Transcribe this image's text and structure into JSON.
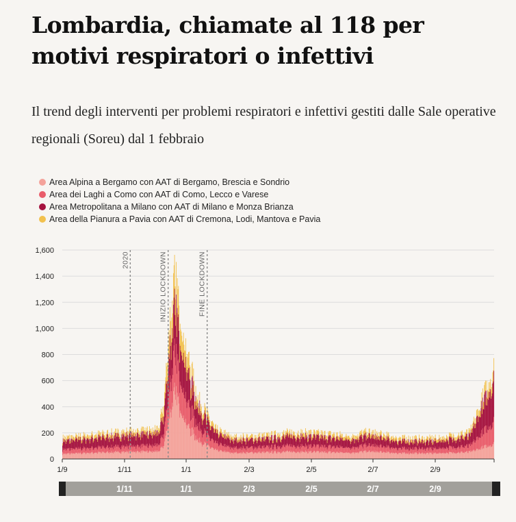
{
  "header": {
    "title": "Lombardia, chiamate al 118 per motivi respiratori o infettivi",
    "subtitle": "Il trend degli interventi per problemi respiratori e infettivi gestiti dalle Sale operative regionali (Soreu) dal 1 febbraio"
  },
  "legend": {
    "items": [
      {
        "label": "Area Alpina a Bergamo con AAT di Bergamo, Brescia e Sondrio",
        "color": "#f4a29a"
      },
      {
        "label": "Area dei Laghi a Como con AAT di Como, Lecco e Varese",
        "color": "#e95c6a"
      },
      {
        "label": "Area Metropolitana a Milano con AAT di Milano e Monza Brianza",
        "color": "#a5123e"
      },
      {
        "label": "Area della Pianura a Pavia con AAT di Cremona, Lodi, Mantova e Pavia",
        "color": "#f2c14e"
      }
    ]
  },
  "chart_data": {
    "type": "bar",
    "stacked": true,
    "xlabel": "",
    "ylabel": "",
    "ylim": [
      0,
      1600
    ],
    "yticks": [
      "0",
      "200",
      "400",
      "600",
      "800",
      "1,000",
      "1,200",
      "1,400",
      "1,600"
    ],
    "xticks": [
      "1/9",
      "1/11",
      "1/1",
      "2/3",
      "2/5",
      "2/7",
      "2/9"
    ],
    "grid": true,
    "x_start": "2019-09-01",
    "x_end": "2021-10-15",
    "annotations": [
      {
        "label": "2020",
        "date": "2020-01-01"
      },
      {
        "label": "INIZIO LOCKDOWN",
        "date": "2020-03-09"
      },
      {
        "label": "FINE LOCKDOWN",
        "date": "2020-05-18"
      }
    ],
    "series": [
      {
        "name": "Area Alpina a Bergamo con AAT di Bergamo, Brescia e Sondrio",
        "color": "#f4a29a",
        "keyframes": [
          [
            "2019-09-01",
            40
          ],
          [
            "2019-11-01",
            50
          ],
          [
            "2020-01-01",
            58
          ],
          [
            "2020-02-20",
            58
          ],
          [
            "2020-03-01",
            110
          ],
          [
            "2020-03-12",
            360
          ],
          [
            "2020-03-20",
            520
          ],
          [
            "2020-03-28",
            440
          ],
          [
            "2020-04-10",
            280
          ],
          [
            "2020-05-01",
            150
          ],
          [
            "2020-06-01",
            70
          ],
          [
            "2020-07-01",
            48
          ],
          [
            "2020-09-01",
            52
          ],
          [
            "2020-10-15",
            58
          ],
          [
            "2020-12-01",
            55
          ],
          [
            "2021-02-01",
            50
          ],
          [
            "2021-03-01",
            60
          ],
          [
            "2021-05-01",
            45
          ],
          [
            "2021-07-01",
            45
          ],
          [
            "2021-09-01",
            55
          ],
          [
            "2021-10-15",
            120
          ]
        ]
      },
      {
        "name": "Area dei Laghi a Como con AAT di Como, Lecco e Varese",
        "color": "#e95c6a",
        "keyframes": [
          [
            "2019-09-01",
            35
          ],
          [
            "2019-11-01",
            40
          ],
          [
            "2020-01-01",
            45
          ],
          [
            "2020-02-20",
            48
          ],
          [
            "2020-03-01",
            100
          ],
          [
            "2020-03-12",
            240
          ],
          [
            "2020-03-20",
            300
          ],
          [
            "2020-03-28",
            260
          ],
          [
            "2020-04-10",
            190
          ],
          [
            "2020-05-01",
            110
          ],
          [
            "2020-06-01",
            55
          ],
          [
            "2020-07-01",
            40
          ],
          [
            "2020-09-01",
            42
          ],
          [
            "2020-10-15",
            48
          ],
          [
            "2020-12-01",
            46
          ],
          [
            "2021-02-01",
            42
          ],
          [
            "2021-03-01",
            50
          ],
          [
            "2021-05-01",
            38
          ],
          [
            "2021-07-01",
            38
          ],
          [
            "2021-09-01",
            48
          ],
          [
            "2021-10-15",
            180
          ]
        ]
      },
      {
        "name": "Area Metropolitana a Milano con AAT di Milano e Monza Brianza",
        "color": "#a5123e",
        "keyframes": [
          [
            "2019-09-01",
            65
          ],
          [
            "2019-11-01",
            75
          ],
          [
            "2020-01-01",
            85
          ],
          [
            "2020-02-20",
            90
          ],
          [
            "2020-03-01",
            150
          ],
          [
            "2020-03-12",
            290
          ],
          [
            "2020-03-20",
            340
          ],
          [
            "2020-03-28",
            320
          ],
          [
            "2020-04-10",
            250
          ],
          [
            "2020-05-01",
            150
          ],
          [
            "2020-06-01",
            80
          ],
          [
            "2020-07-01",
            60
          ],
          [
            "2020-09-01",
            62
          ],
          [
            "2020-10-15",
            75
          ],
          [
            "2020-12-01",
            70
          ],
          [
            "2021-02-01",
            62
          ],
          [
            "2021-03-01",
            70
          ],
          [
            "2021-05-01",
            55
          ],
          [
            "2021-07-01",
            55
          ],
          [
            "2021-09-01",
            75
          ],
          [
            "2021-10-15",
            330
          ]
        ]
      },
      {
        "name": "Area della Pianura a Pavia con AAT di Cremona, Lodi, Mantova e Pavia",
        "color": "#f2c14e",
        "keyframes": [
          [
            "2019-09-01",
            25
          ],
          [
            "2019-11-01",
            28
          ],
          [
            "2020-01-01",
            30
          ],
          [
            "2020-02-20",
            32
          ],
          [
            "2020-03-01",
            90
          ],
          [
            "2020-03-12",
            200
          ],
          [
            "2020-03-20",
            230
          ],
          [
            "2020-03-28",
            200
          ],
          [
            "2020-04-10",
            130
          ],
          [
            "2020-05-01",
            60
          ],
          [
            "2020-06-01",
            32
          ],
          [
            "2020-07-01",
            25
          ],
          [
            "2020-09-01",
            26
          ],
          [
            "2020-10-15",
            30
          ],
          [
            "2020-12-01",
            30
          ],
          [
            "2021-02-01",
            28
          ],
          [
            "2021-03-01",
            32
          ],
          [
            "2021-05-01",
            25
          ],
          [
            "2021-07-01",
            25
          ],
          [
            "2021-09-01",
            30
          ],
          [
            "2021-10-15",
            90
          ]
        ]
      }
    ]
  },
  "navigator": {
    "labels": [
      "1/11",
      "1/1",
      "2/3",
      "2/5",
      "2/7",
      "2/9"
    ]
  }
}
